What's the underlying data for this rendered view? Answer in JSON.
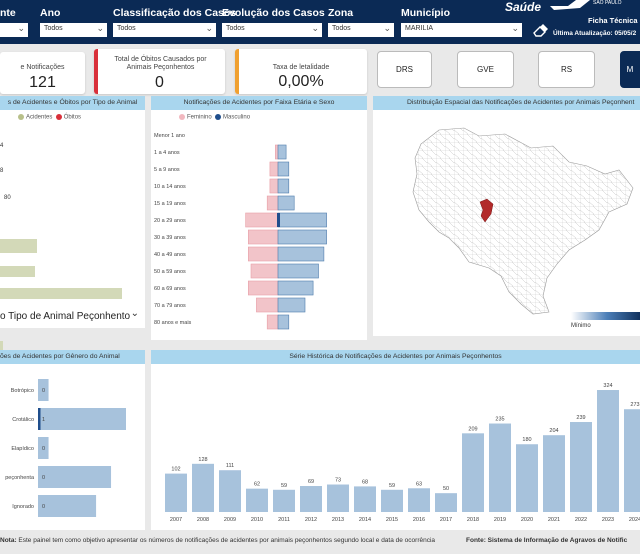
{
  "filters": [
    {
      "label": "nte",
      "value": ""
    },
    {
      "label": "Ano",
      "value": "Todos"
    },
    {
      "label": "Classificação dos Casos",
      "value": "Todos"
    },
    {
      "label": "Evolução dos Casos",
      "value": "Todos"
    },
    {
      "label": "Zona",
      "value": "Todos"
    },
    {
      "label": "Município",
      "value": "MARILIA"
    }
  ],
  "header": {
    "logo": "Saúde",
    "logo_sub": "SÃO PAULO",
    "ficha": "Ficha Técnica d",
    "update": "Última Atualização: 05/05/2",
    "eraser_icon": "eraser-icon"
  },
  "kpis": [
    {
      "label": "e Notificações",
      "value": "121"
    },
    {
      "label": "Total de Óbitos Causados por Animais Peçonhentos",
      "value": "0",
      "accent": "#d9303a"
    },
    {
      "label": "Taxa de letalidade",
      "value": "0,00%",
      "accent": "#f0a030"
    }
  ],
  "buttons": [
    "DRS",
    "GVE",
    "RS",
    "M"
  ],
  "panels": {
    "tipo": {
      "title": "s de Acidentes e Óbitos por Tipo de Animal",
      "legend": [
        {
          "name": "Acidentes",
          "color": "#d3d9b8"
        },
        {
          "name": "Óbitos",
          "color": "#d9303a"
        }
      ],
      "bars": [
        {
          "label": "4",
          "value": 4
        },
        {
          "label": "8",
          "value": 8
        },
        {
          "label": "80",
          "value": 80
        },
        {
          "label": "",
          "value": 0.3
        }
      ]
    },
    "tipo_section_title": "o Tipo de Animal Peçonhento",
    "faixa": {
      "title": "Notificações de Acidentes por Faixa Etária e Sexo",
      "legend": [
        {
          "name": "Feminino",
          "color": "#f2b8bf"
        },
        {
          "name": "Masculino",
          "color": "#1f4e8c"
        }
      ]
    },
    "mapa": {
      "title": "Distribuição Espacial das Notificações de Acidentes por Animais Peçonhent",
      "scale_min": "Mínimo"
    },
    "genero": {
      "title": "ões de Acidentes por Gênero do Animal"
    },
    "serie": {
      "title": "Série Histórica de Notificações de Acidentes por Animais Peçonhentos"
    }
  },
  "chart_data": [
    {
      "type": "bar",
      "title": "Notificações de Acidentes por Faixa Etária e Sexo",
      "categories": [
        "Menor 1 ano",
        "1 a 4 anos",
        "5 a 9 anos",
        "10 a 14 anos",
        "15 a 19 anos",
        "20 a 29 anos",
        "30 a 39 anos",
        "40 a 49 anos",
        "50 a 59 anos",
        "60 a 69 anos",
        "70 a 79 anos",
        "80 anos e mais"
      ],
      "series": [
        {
          "name": "Feminino",
          "values": [
            0,
            1,
            3,
            3,
            4,
            12,
            11,
            11,
            10,
            11,
            8,
            4
          ]
        },
        {
          "name": "Masculino",
          "values": [
            0,
            3,
            4,
            4,
            6,
            18,
            18,
            17,
            15,
            13,
            10,
            4
          ]
        }
      ],
      "colors": {
        "Feminino": "#f2c4c9",
        "Masculino": "#a7c2dc"
      }
    },
    {
      "type": "bar",
      "title": "ões de Acidentes por Gênero do Animal",
      "categories": [
        "Botrópico",
        "Crotálico",
        "Elapídico",
        "peçonhenta",
        "Ignorado"
      ],
      "values": [
        0,
        1,
        0,
        0,
        0
      ],
      "display_values": [
        "0",
        "1",
        "0",
        "0",
        "0"
      ],
      "bar_fraction": [
        0.12,
        1.0,
        0.12,
        0.83,
        0.66
      ]
    },
    {
      "type": "bar",
      "title": "Série Histórica de Notificações de Acidentes por Animais Peçonhentos",
      "categories": [
        "2007",
        "2008",
        "2009",
        "2010",
        "2011",
        "2012",
        "2013",
        "2014",
        "2015",
        "2016",
        "2017",
        "2018",
        "2019",
        "2020",
        "2021",
        "2022",
        "2023",
        "2024"
      ],
      "values": [
        102,
        128,
        111,
        62,
        59,
        69,
        73,
        68,
        59,
        63,
        50,
        209,
        235,
        180,
        204,
        239,
        324,
        273
      ],
      "ylim": [
        0,
        340
      ]
    }
  ]
}
